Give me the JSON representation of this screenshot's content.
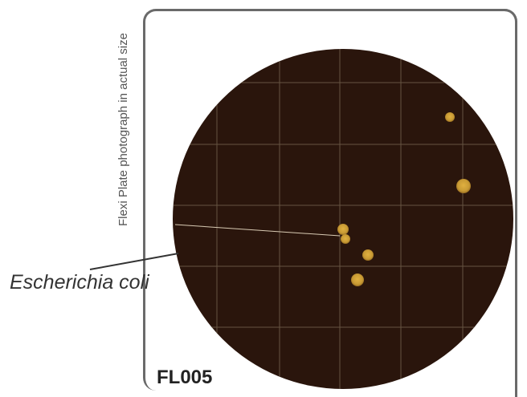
{
  "caption_vertical": "Flexi Plate photograph in actual size",
  "callout_label": "Escherichia coli",
  "plate_code": "FL005",
  "colors": {
    "plate": "#2a150c",
    "grid": "#7a6a55",
    "colony": "#c89a34",
    "frame": "#6a6a6a"
  }
}
